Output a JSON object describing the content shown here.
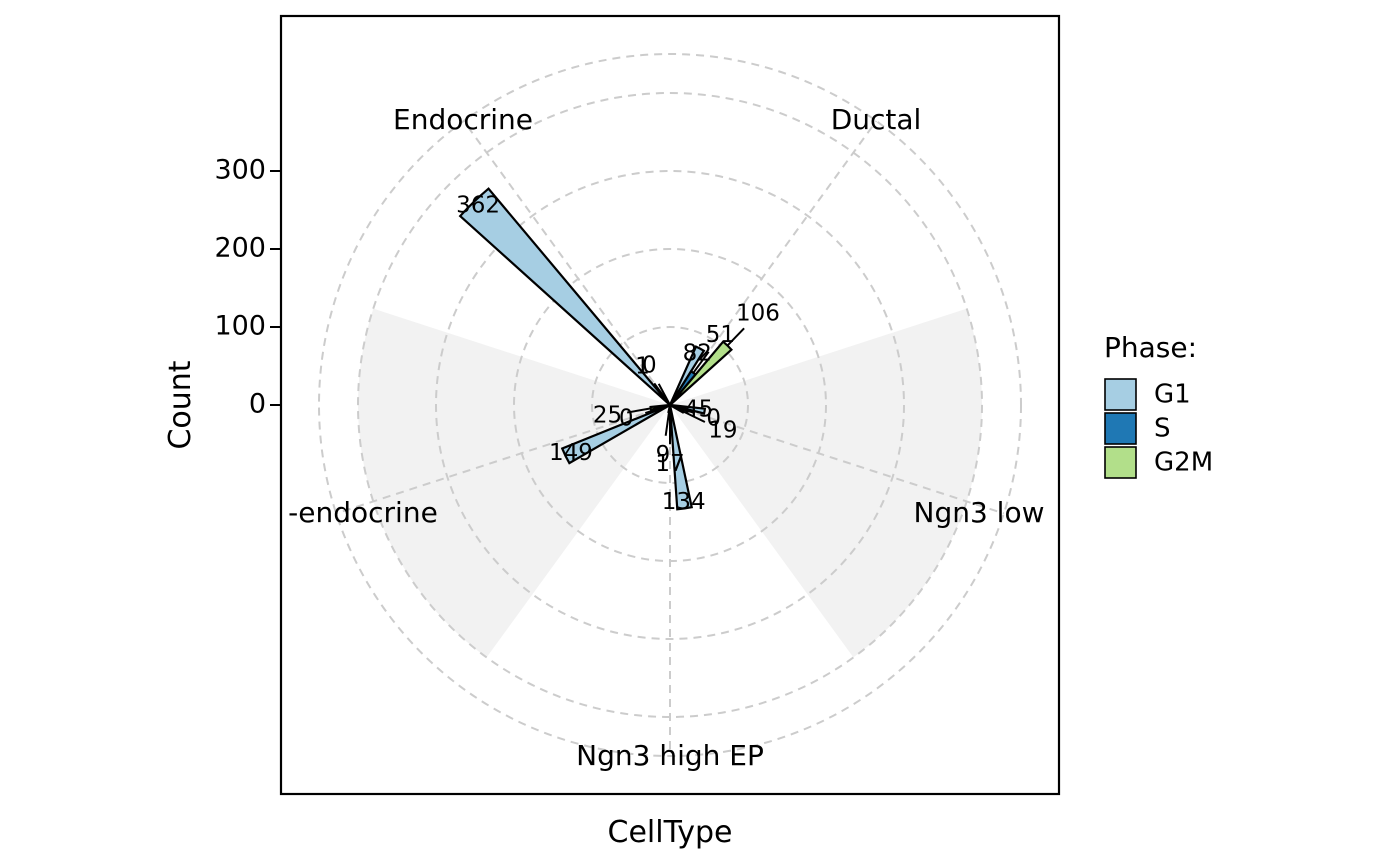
{
  "chart_data": {
    "type": "bar",
    "coord": "polar",
    "title": "",
    "xlabel": "CellType",
    "ylabel": "Count",
    "categories": [
      "Ductal",
      "Ngn3 low",
      "Ngn3 high EP",
      "Pre-endocrine",
      "Endocrine"
    ],
    "visible_category_labels": [
      "Ductal",
      "Ngn3 low",
      "Ngn3 high EP",
      "-endocrine",
      "Endocrine"
    ],
    "yticks": [
      0,
      100,
      200,
      300
    ],
    "ylim": [
      0,
      400
    ],
    "grid": true,
    "legend": {
      "title": "Phase:",
      "position": "right"
    },
    "series": [
      {
        "name": "G1",
        "color": "#a6cee3",
        "values": [
          82,
          45,
          134,
          149,
          362
        ]
      },
      {
        "name": "S",
        "color": "#1f78b4",
        "values": [
          51,
          0,
          17,
          0,
          1
        ]
      },
      {
        "name": "G2M",
        "color": "#b2df8a",
        "values": [
          106,
          19,
          9,
          25,
          0
        ]
      }
    ]
  }
}
